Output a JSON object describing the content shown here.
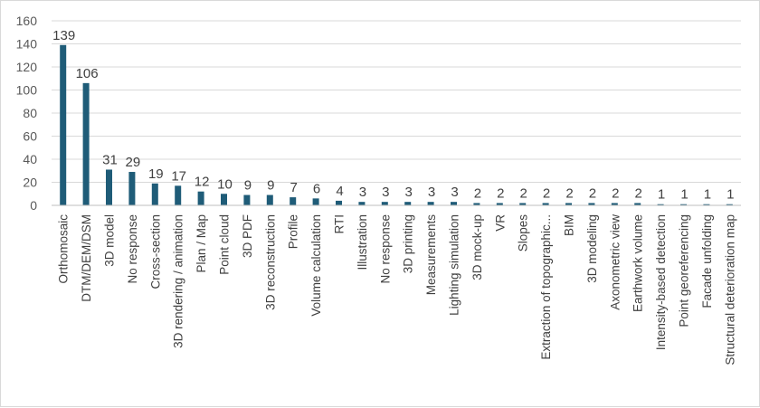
{
  "chart_data": {
    "type": "bar",
    "title": "",
    "xlabel": "",
    "ylabel": "",
    "ylim": [
      0,
      160
    ],
    "yticks": [
      0,
      20,
      40,
      60,
      80,
      100,
      120,
      140,
      160
    ],
    "grid": true,
    "legend": "none",
    "bar_color": "#1f5c78",
    "gridline_color": "#d9d9d9",
    "categories": [
      "Orthomosaic",
      "DTM/DEM/DSM",
      "3D model",
      "No response",
      "Cross-section",
      "3D rendering / animation",
      "Plan / Map",
      "Point cloud",
      "3D PDF",
      "3D reconstruction",
      "Profile",
      "Volume calculation",
      "RTI",
      "Illustration",
      "No response",
      "3D printing",
      "Measurements",
      "Lighting simulation",
      "3D mock-up",
      "VR",
      "Slopes",
      "Extraction of topographic...",
      "BIM",
      "3D modeling",
      "Axonometric view",
      "Earthwork volume",
      "Intensity-based detection",
      "Point georeferencing",
      "Facade unfolding",
      "Structural deterioration map"
    ],
    "values": [
      139,
      106,
      31,
      29,
      19,
      17,
      12,
      10,
      9,
      9,
      7,
      6,
      4,
      3,
      3,
      3,
      3,
      3,
      2,
      2,
      2,
      2,
      2,
      2,
      2,
      2,
      1,
      1,
      1,
      1
    ]
  }
}
